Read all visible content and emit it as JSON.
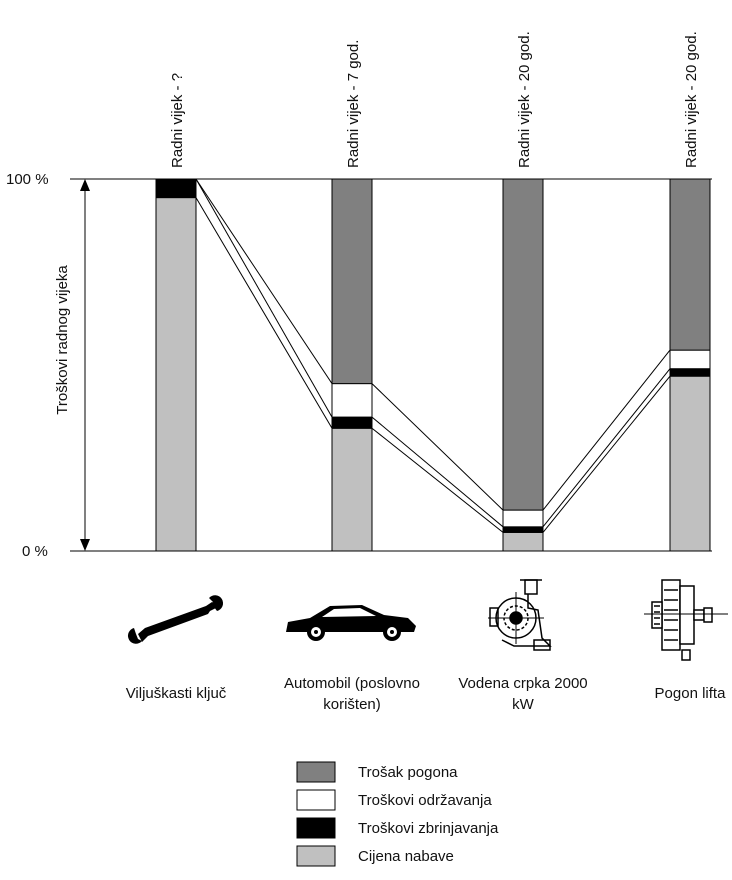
{
  "chart_data": {
    "type": "bar",
    "stacked": true,
    "normalized": true,
    "ylabel": "Troškovi radnog vijeka",
    "y_ticks": [
      "100 %",
      "0 %"
    ],
    "ylim": [
      0,
      100
    ],
    "categories": [
      "Viljuškasti ključ",
      "Automobil (poslovno korišten)",
      "Vodena crpka 2000 kW",
      "Pogon lifta"
    ],
    "top_labels": [
      "Radni vijek - ?",
      "Radni vijek - 7 god.",
      "Radni vijek - 20 god.",
      "Radni vijek - 20 god."
    ],
    "icons": [
      "wrench-icon",
      "car-icon",
      "water-pump-icon",
      "lift-drive-icon"
    ],
    "series": [
      {
        "name": "Cijena nabave",
        "color": "#c0c0c0",
        "values": [
          95,
          33,
          5,
          47
        ]
      },
      {
        "name": "Troškovi zbrinjavanja",
        "color": "#000000",
        "values": [
          5,
          3,
          1.5,
          2
        ]
      },
      {
        "name": "Troškovi održavanja",
        "color": "#ffffff",
        "values": [
          0,
          9,
          4.5,
          5
        ]
      },
      {
        "name": "Trošak pogona",
        "color": "#808080",
        "values": [
          0,
          55,
          89,
          46
        ]
      }
    ],
    "legend": {
      "position": "bottom-center",
      "order": [
        3,
        2,
        1,
        0
      ]
    }
  }
}
